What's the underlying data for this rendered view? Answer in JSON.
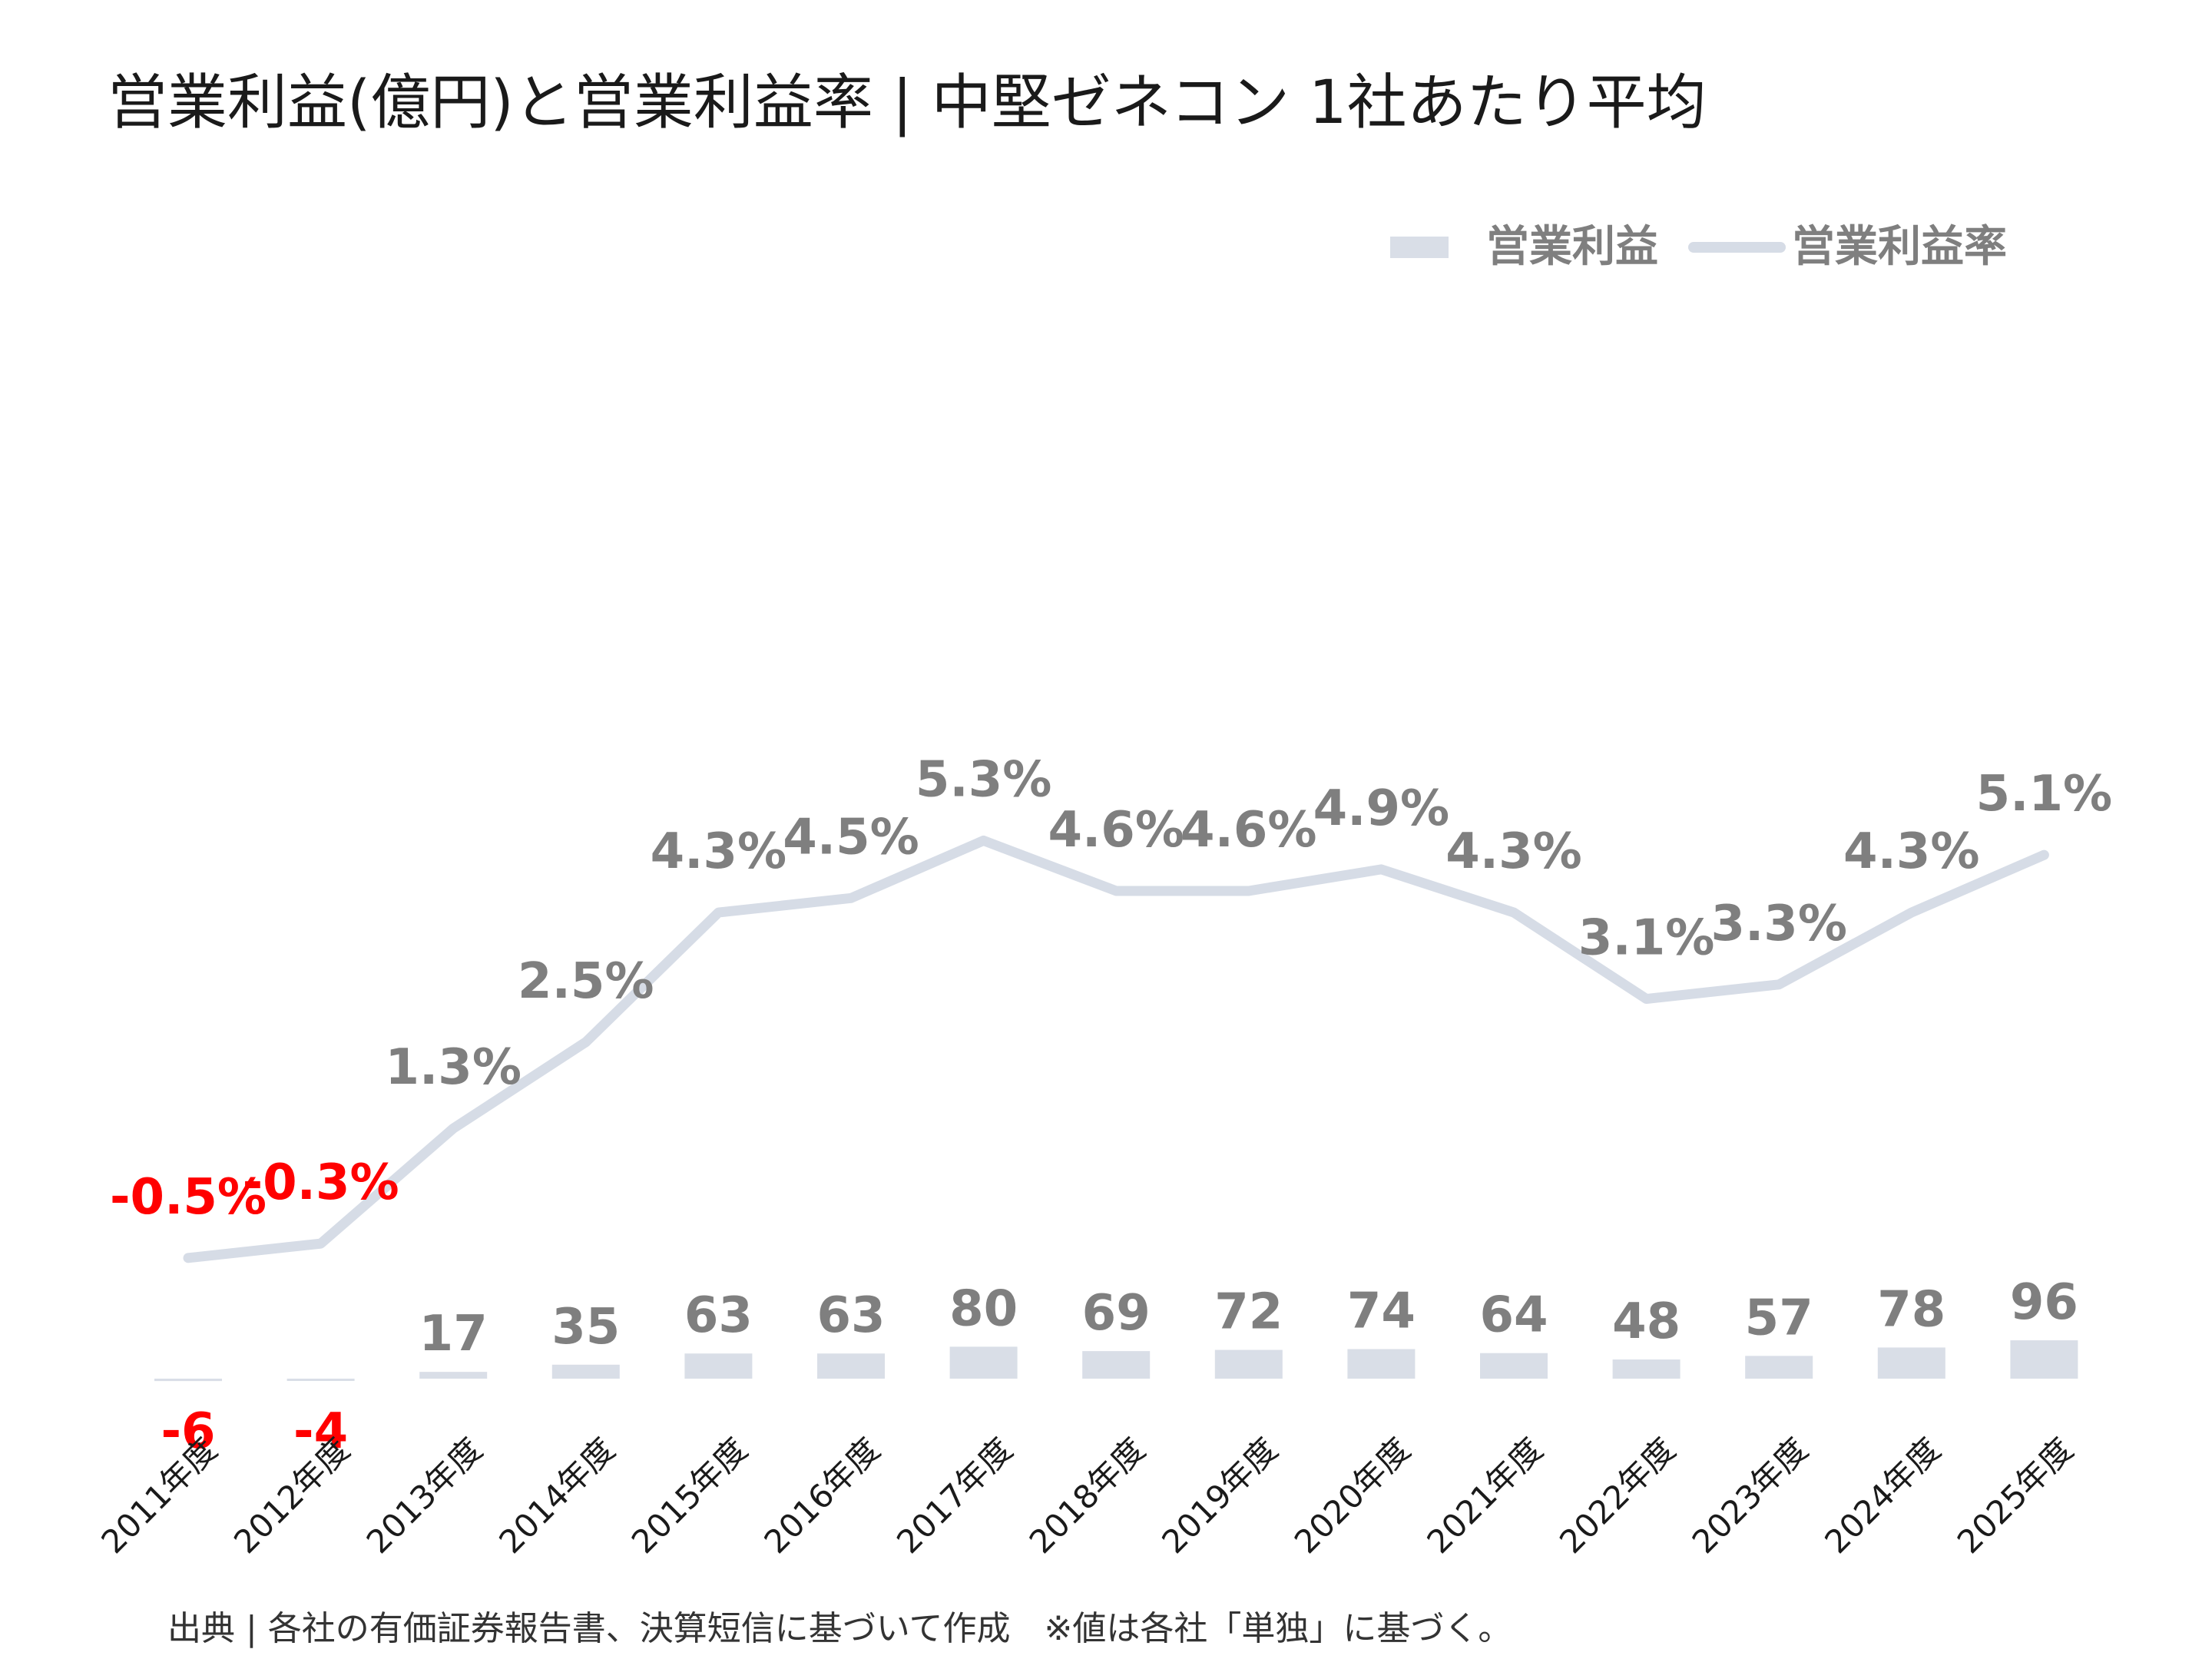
{
  "chart_data": {
    "type": "bar",
    "title": "営業利益(億円)と営業利益率 | 中堅ゼネコン 1社あたり平均",
    "categories": [
      "2011年度",
      "2012年度",
      "2013年度",
      "2014年度",
      "2015年度",
      "2016年度",
      "2017年度",
      "2018年度",
      "2019年度",
      "2020年度",
      "2021年度",
      "2022年度",
      "2023年度",
      "2024年度",
      "2025年度"
    ],
    "series": [
      {
        "name": "営業利益",
        "type": "bar",
        "axis": "left",
        "values": [
          -6,
          -4,
          17,
          35,
          63,
          63,
          80,
          69,
          72,
          74,
          64,
          48,
          57,
          78,
          96
        ],
        "labels": [
          "-6",
          "-4",
          "17",
          "35",
          "63",
          "63",
          "80",
          "69",
          "72",
          "74",
          "64",
          "48",
          "57",
          "78",
          "96"
        ]
      },
      {
        "name": "営業利益率",
        "type": "line",
        "axis": "right",
        "values": [
          -0.5,
          -0.3,
          1.3,
          2.5,
          4.3,
          4.5,
          5.3,
          4.6,
          4.6,
          4.9,
          4.3,
          3.1,
          3.3,
          4.3,
          5.1
        ],
        "labels": [
          "-0.5%",
          "-0.3%",
          "1.3%",
          "2.5%",
          "4.3%",
          "4.5%",
          "5.3%",
          "4.6%",
          "4.6%",
          "4.9%",
          "4.3%",
          "3.1%",
          "3.3%",
          "4.3%",
          "5.1%"
        ]
      }
    ],
    "legend": [
      "営業利益",
      "営業利益率"
    ],
    "legend_position": "top-right",
    "grid": false,
    "source_note": "出典 | 各社の有価証券報告書、決算短信に基づいて作成　※値は各社「単独」に基づく。",
    "colors": {
      "bar": "#d9dee7",
      "line": "#d6dce6",
      "label": "#7f7f7f",
      "negative": "#ff0000",
      "title": "#1a1a1a"
    }
  }
}
